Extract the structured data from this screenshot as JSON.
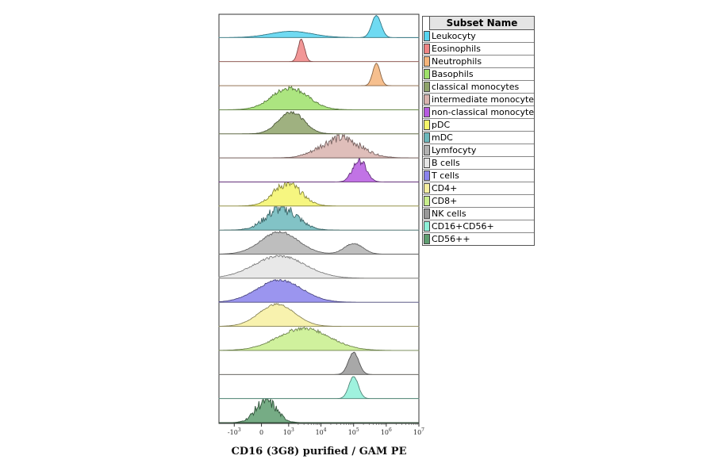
{
  "chart_data": {
    "type": "area",
    "title": "",
    "xlabel": "CD16 (3G8) purified / GAM PE",
    "ylabel": "",
    "x_scale": "biexponential",
    "xlim": [
      -3000,
      10000000
    ],
    "x_ticks": [
      {
        "value": -1000,
        "base": "-10",
        "exp": "3"
      },
      {
        "value": 0,
        "base": "0",
        "exp": ""
      },
      {
        "value": 1000,
        "base": "10",
        "exp": "3"
      },
      {
        "value": 10000,
        "base": "10",
        "exp": "4"
      },
      {
        "value": 100000,
        "base": "10",
        "exp": "5"
      },
      {
        "value": 1000000,
        "base": "10",
        "exp": "6"
      },
      {
        "value": 10000000,
        "base": "10",
        "exp": "7"
      }
    ],
    "legend": {
      "title": "Subset Name",
      "position": "right"
    },
    "series": [
      {
        "name": "Leukocyty",
        "color": "#56d4f0",
        "peaks": [
          {
            "center": 1200,
            "height": 0.28,
            "width": 0.45
          },
          {
            "center": 500000,
            "height": 1.0,
            "width": 0.1
          }
        ],
        "noise": 0.02
      },
      {
        "name": "Eosinophils",
        "color": "#f08484",
        "peaks": [
          {
            "center": 2500,
            "height": 1.0,
            "width": 0.07
          }
        ],
        "noise": 0.05
      },
      {
        "name": "Neutrophils",
        "color": "#f5b47a",
        "peaks": [
          {
            "center": 500000,
            "height": 1.0,
            "width": 0.08
          }
        ],
        "noise": 0.02
      },
      {
        "name": "Basophils",
        "color": "#9ee06a",
        "peaks": [
          {
            "center": 1100,
            "height": 1.0,
            "width": 0.38
          }
        ],
        "noise": 0.12
      },
      {
        "name": "classical monocytes",
        "color": "#8ea36a",
        "peaks": [
          {
            "center": 1200,
            "height": 1.0,
            "width": 0.27
          }
        ],
        "noise": 0.08
      },
      {
        "name": "intermediate monocytes",
        "color": "#d9b3ae",
        "peaks": [
          {
            "center": 40000,
            "height": 0.9,
            "width": 0.42
          }
        ],
        "noise": 0.25
      },
      {
        "name": "non-classical monocytes",
        "color": "#b65ae0",
        "peaks": [
          {
            "center": 150000,
            "height": 1.0,
            "width": 0.14
          }
        ],
        "noise": 0.2
      },
      {
        "name": "pDC",
        "color": "#f5f56a",
        "peaks": [
          {
            "center": 900,
            "height": 1.0,
            "width": 0.3
          }
        ],
        "noise": 0.2
      },
      {
        "name": "mDC",
        "color": "#6cb8bc",
        "peaks": [
          {
            "center": 600,
            "height": 1.0,
            "width": 0.33
          }
        ],
        "noise": 0.3
      },
      {
        "name": "Lymfocyty",
        "color": "#b3b3b3",
        "peaks": [
          {
            "center": 500,
            "height": 1.0,
            "width": 0.4
          },
          {
            "center": 100000,
            "height": 0.48,
            "width": 0.2
          }
        ],
        "noise": 0.05
      },
      {
        "name": "B cells",
        "color": "#e4e4e4",
        "peaks": [
          {
            "center": 500,
            "height": 1.0,
            "width": 0.55
          }
        ],
        "noise": 0.06
      },
      {
        "name": "T cells",
        "color": "#8a83ec",
        "peaks": [
          {
            "center": 500,
            "height": 1.0,
            "width": 0.48
          }
        ],
        "noise": 0.05
      },
      {
        "name": "CD4+",
        "color": "#f7f0a0",
        "peaks": [
          {
            "center": 400,
            "height": 1.0,
            "width": 0.38
          }
        ],
        "noise": 0.04
      },
      {
        "name": "CD8+",
        "color": "#c8ee8c",
        "peaks": [
          {
            "center": 3000,
            "height": 1.0,
            "width": 0.55
          }
        ],
        "noise": 0.08
      },
      {
        "name": "NK cells",
        "color": "#999999",
        "peaks": [
          {
            "center": 100000,
            "height": 1.0,
            "width": 0.11
          }
        ],
        "noise": 0.03
      },
      {
        "name": "CD16+CD56+",
        "color": "#8ef0d8",
        "peaks": [
          {
            "center": 100000,
            "height": 1.0,
            "width": 0.1
          }
        ],
        "noise": 0.03
      },
      {
        "name": "CD56++",
        "color": "#5e9e70",
        "peaks": [
          {
            "center": 100,
            "height": 1.0,
            "width": 0.22
          }
        ],
        "noise": 0.3
      }
    ]
  }
}
